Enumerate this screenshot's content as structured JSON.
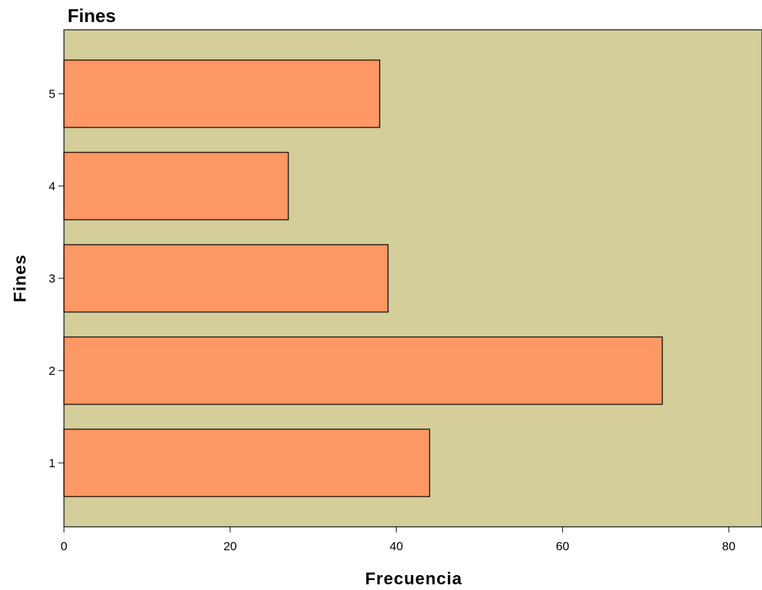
{
  "chart_data": {
    "type": "bar",
    "orientation": "horizontal",
    "title": "Fines",
    "xlabel": "Frecuencia",
    "ylabel": "Fines",
    "categories": [
      "1",
      "2",
      "3",
      "4",
      "5"
    ],
    "values": [
      44,
      72,
      39,
      27,
      38
    ],
    "xlim": [
      0,
      84
    ],
    "xticks": [
      0,
      20,
      40,
      60,
      80
    ],
    "grid": false,
    "colors": {
      "plot_background": "#d3ce9a",
      "bar_fill": "#fd9764",
      "bar_stroke": "#2b1a10"
    }
  }
}
